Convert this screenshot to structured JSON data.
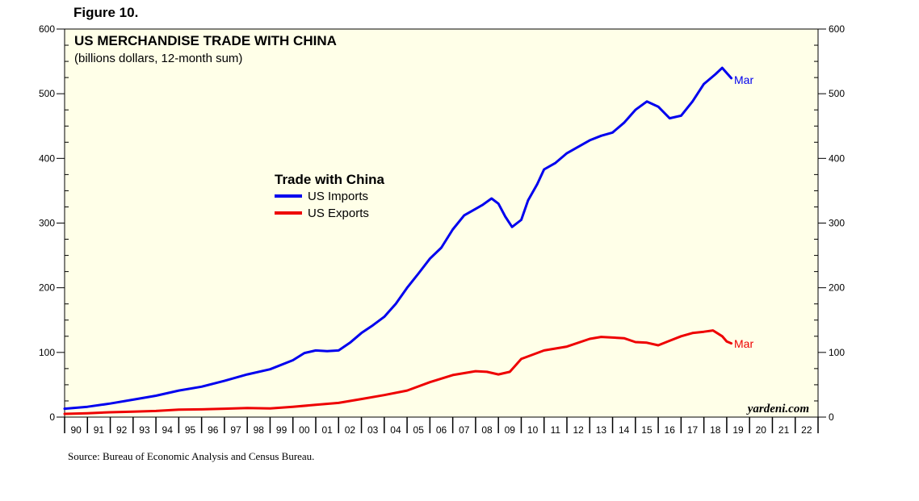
{
  "figure_label": "Figure 10.",
  "source": "Source: Bureau of Economic Analysis and Census Bureau.",
  "colors": {
    "plot_bg": "#ffffe8",
    "imports": "#0000ee",
    "exports": "#ee0000"
  },
  "chart_data": {
    "type": "line",
    "title": "US MERCHANDISE TRADE WITH CHINA",
    "subtitle": "(billions dollars, 12-month sum)",
    "legend_title": "Trade with China",
    "watermark": "yardeni.com",
    "ylim": [
      0,
      600
    ],
    "y_ticks": [
      0,
      100,
      200,
      300,
      400,
      500,
      600
    ],
    "y_tick_labels": [
      "0",
      "100",
      "200",
      "300",
      "400",
      "500",
      "600"
    ],
    "xlim": [
      1990,
      2023
    ],
    "x_tick_labels": [
      "90",
      "91",
      "92",
      "93",
      "94",
      "95",
      "96",
      "97",
      "98",
      "99",
      "00",
      "01",
      "02",
      "03",
      "04",
      "05",
      "06",
      "07",
      "08",
      "09",
      "10",
      "11",
      "12",
      "13",
      "14",
      "15",
      "16",
      "17",
      "18",
      "19",
      "20",
      "21",
      "22"
    ],
    "series": [
      {
        "name": "US Imports",
        "color_key": "imports",
        "end_label": "Mar",
        "points": [
          [
            1990.0,
            13
          ],
          [
            1991.0,
            16
          ],
          [
            1992.0,
            21
          ],
          [
            1993.0,
            27
          ],
          [
            1994.0,
            33
          ],
          [
            1995.0,
            41
          ],
          [
            1996.0,
            47
          ],
          [
            1997.0,
            56
          ],
          [
            1998.0,
            66
          ],
          [
            1999.0,
            74
          ],
          [
            2000.0,
            88
          ],
          [
            2000.5,
            99
          ],
          [
            2001.0,
            103
          ],
          [
            2001.5,
            102
          ],
          [
            2002.0,
            103
          ],
          [
            2002.5,
            115
          ],
          [
            2003.0,
            130
          ],
          [
            2003.5,
            142
          ],
          [
            2004.0,
            155
          ],
          [
            2004.5,
            175
          ],
          [
            2005.0,
            200
          ],
          [
            2005.5,
            222
          ],
          [
            2006.0,
            245
          ],
          [
            2006.5,
            262
          ],
          [
            2007.0,
            290
          ],
          [
            2007.5,
            312
          ],
          [
            2008.0,
            322
          ],
          [
            2008.3,
            328
          ],
          [
            2008.7,
            338
          ],
          [
            2009.0,
            330
          ],
          [
            2009.3,
            310
          ],
          [
            2009.6,
            294
          ],
          [
            2010.0,
            305
          ],
          [
            2010.3,
            335
          ],
          [
            2010.7,
            360
          ],
          [
            2011.0,
            383
          ],
          [
            2011.5,
            393
          ],
          [
            2012.0,
            408
          ],
          [
            2012.5,
            418
          ],
          [
            2013.0,
            428
          ],
          [
            2013.5,
            435
          ],
          [
            2014.0,
            440
          ],
          [
            2014.5,
            455
          ],
          [
            2015.0,
            475
          ],
          [
            2015.5,
            488
          ],
          [
            2016.0,
            480
          ],
          [
            2016.5,
            462
          ],
          [
            2017.0,
            466
          ],
          [
            2017.5,
            488
          ],
          [
            2018.0,
            515
          ],
          [
            2018.5,
            530
          ],
          [
            2018.8,
            540
          ],
          [
            2019.0,
            532
          ],
          [
            2019.2,
            524
          ]
        ]
      },
      {
        "name": "US Exports",
        "color_key": "exports",
        "end_label": "Mar",
        "points": [
          [
            1990.0,
            5
          ],
          [
            1991.0,
            6
          ],
          [
            1992.0,
            7.5
          ],
          [
            1993.0,
            8.5
          ],
          [
            1994.0,
            9.5
          ],
          [
            1995.0,
            11.5
          ],
          [
            1996.0,
            12
          ],
          [
            1997.0,
            13
          ],
          [
            1998.0,
            14
          ],
          [
            1999.0,
            13.5
          ],
          [
            2000.0,
            16
          ],
          [
            2001.0,
            19
          ],
          [
            2002.0,
            22
          ],
          [
            2003.0,
            28
          ],
          [
            2004.0,
            34
          ],
          [
            2005.0,
            41
          ],
          [
            2006.0,
            54
          ],
          [
            2007.0,
            65
          ],
          [
            2008.0,
            71
          ],
          [
            2008.5,
            70
          ],
          [
            2009.0,
            66
          ],
          [
            2009.5,
            70
          ],
          [
            2010.0,
            90
          ],
          [
            2011.0,
            103
          ],
          [
            2012.0,
            109
          ],
          [
            2013.0,
            121
          ],
          [
            2013.5,
            124
          ],
          [
            2014.0,
            123
          ],
          [
            2014.5,
            122
          ],
          [
            2015.0,
            116
          ],
          [
            2015.5,
            115
          ],
          [
            2016.0,
            111
          ],
          [
            2016.5,
            118
          ],
          [
            2017.0,
            125
          ],
          [
            2017.5,
            130
          ],
          [
            2018.0,
            132
          ],
          [
            2018.4,
            134
          ],
          [
            2018.8,
            125
          ],
          [
            2019.0,
            117
          ],
          [
            2019.2,
            114
          ]
        ]
      }
    ]
  }
}
